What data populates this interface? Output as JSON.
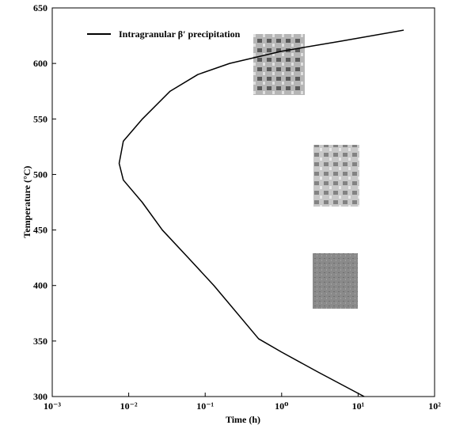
{
  "chart_data": {
    "type": "line",
    "xlabel": "Time (h)",
    "ylabel": "Temperature (°C)",
    "xscale": "log",
    "xlim": [
      0.001,
      100
    ],
    "ylim": [
      300,
      650
    ],
    "xticks": [
      {
        "value": 0.001,
        "label": "10⁻³"
      },
      {
        "value": 0.01,
        "label": "10⁻²"
      },
      {
        "value": 0.1,
        "label": "10⁻¹"
      },
      {
        "value": 1,
        "label": "10⁰"
      },
      {
        "value": 10,
        "label": "10¹"
      },
      {
        "value": 100,
        "label": "10²"
      }
    ],
    "yticks": [
      300,
      350,
      400,
      450,
      500,
      550,
      600,
      650
    ],
    "legend": "upper left",
    "series": [
      {
        "name": "Intragranular β′ precipitation",
        "color": "#000000",
        "x": [
          12,
          3,
          1,
          0.5,
          0.13,
          0.06,
          0.0275,
          0.015,
          0.0085,
          0.0075,
          0.0085,
          0.0151,
          0.0348,
          0.08,
          0.209,
          1,
          5.86,
          39.5
        ],
        "values": [
          300,
          322,
          340,
          352,
          400,
          425,
          450,
          475,
          495,
          510,
          530,
          550,
          575,
          590,
          600,
          611,
          620,
          630
        ]
      }
    ]
  }
}
